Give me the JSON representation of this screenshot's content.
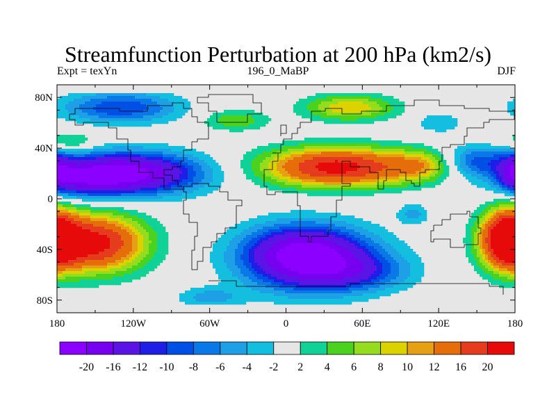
{
  "title": "Streamfunction Perturbation at 200 hPa (km2/s)",
  "left_string": "Expt = texYn",
  "center_string": "196_0_MaBP",
  "right_string": "DJF",
  "lon_ticks": [
    "180",
    "120W",
    "60W",
    "0",
    "60E",
    "120E",
    "180"
  ],
  "lat_ticks": [
    "80N",
    "40N",
    "0",
    "40S",
    "80S"
  ],
  "lat_tick_values": [
    80,
    40,
    0,
    -40,
    -80
  ],
  "lon_tick_values": [
    -180,
    -120,
    -60,
    0,
    60,
    120,
    180
  ],
  "colorbar": {
    "labels": [
      "-20",
      "-16",
      "-12",
      "-10",
      "-8",
      "-6",
      "-4",
      "-2",
      "2",
      "4",
      "6",
      "8",
      "10",
      "12",
      "16",
      "20"
    ],
    "colors": [
      "#8c00ff",
      "#7800f0",
      "#5a14e6",
      "#1e1ee6",
      "#0050e6",
      "#0a78e6",
      "#1ea0e6",
      "#14bede",
      "#e6e6e6",
      "#10d296",
      "#4bd21e",
      "#96dc1e",
      "#dcd200",
      "#e6a014",
      "#e66e0a",
      "#e63c1e",
      "#e60a0a"
    ]
  },
  "chart_data": {
    "type": "heatmap",
    "projection": "cylindrical-equidistant",
    "title": "Streamfunction Perturbation at 200 hPa (km2/s)",
    "xlim": [
      -180,
      180
    ],
    "ylim": [
      -90,
      90
    ],
    "contour_levels": [
      -20,
      -16,
      -12,
      -10,
      -8,
      -6,
      -4,
      -2,
      2,
      4,
      6,
      8,
      10,
      12,
      16,
      20
    ],
    "features": [
      {
        "region": "North Pacific subtropics (lon -180 to -70, lat 0 to 40N)",
        "value": -21
      },
      {
        "region": "Southern Hemisphere South America/Atlantic/Africa (lon -50 to 90, lat 10S to 80S)",
        "value": -19
      },
      {
        "region": "Northern Hemisphere Africa/Asia subtropics (lon -20 to 120, lat 5N to 40N)",
        "value": 20
      },
      {
        "region": "South Pacific subtropics (lon -180 to -110, lat 10S to 60S)",
        "value": 20
      },
      {
        "region": "Eastern Pacific south of equator (lon 145 to 180, lat 10S to 50S)",
        "value": 18
      },
      {
        "region": "Northeast Asia high latitudes (lon 20 to 80, lat 55N to 80N)",
        "value": 9
      },
      {
        "region": "North America high latitudes (lon -170 to -90, lat 60N to 85N)",
        "value": -9
      },
      {
        "region": "North Pacific mid latitudes (lon 140 to 180, lat 20N to 40N)",
        "value": -8
      }
    ]
  }
}
